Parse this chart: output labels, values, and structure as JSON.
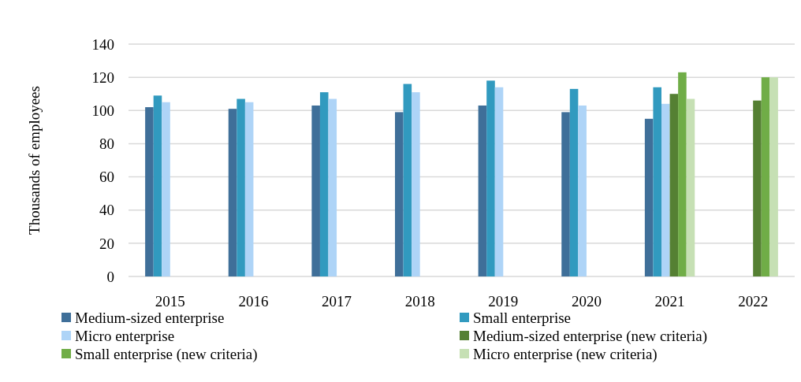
{
  "chart_data": {
    "type": "bar",
    "ylabel": "Thousands of employees",
    "categories": [
      "2015",
      "2016",
      "2017",
      "2018",
      "2019",
      "2020",
      "2021",
      "2022"
    ],
    "series": [
      {
        "name": "Medium-sized enterprise",
        "color": "#3f6f99",
        "values": [
          102,
          101,
          103,
          99,
          103,
          99,
          95,
          null
        ]
      },
      {
        "name": "Small enterprise",
        "color": "#319abf",
        "values": [
          109,
          107,
          111,
          116,
          118,
          113,
          114,
          null
        ]
      },
      {
        "name": "Micro enterprise",
        "color": "#aed4f7",
        "values": [
          105,
          105,
          107,
          111,
          114,
          103,
          104,
          null
        ]
      },
      {
        "name": "Medium-sized enterprise (new criteria)",
        "color": "#558033",
        "values": [
          null,
          null,
          null,
          null,
          null,
          null,
          110,
          106
        ]
      },
      {
        "name": "Small enterprise (new criteria)",
        "color": "#70ad47",
        "values": [
          null,
          null,
          null,
          null,
          null,
          null,
          123,
          120
        ]
      },
      {
        "name": "Micro enterprise (new criteria)",
        "color": "#c6e0b4",
        "values": [
          null,
          null,
          null,
          null,
          null,
          null,
          107,
          120
        ]
      }
    ],
    "ylim": [
      0,
      140
    ],
    "yticks": [
      0,
      20,
      40,
      60,
      80,
      100,
      120,
      140
    ],
    "grid": "y",
    "legend": "bottom"
  }
}
